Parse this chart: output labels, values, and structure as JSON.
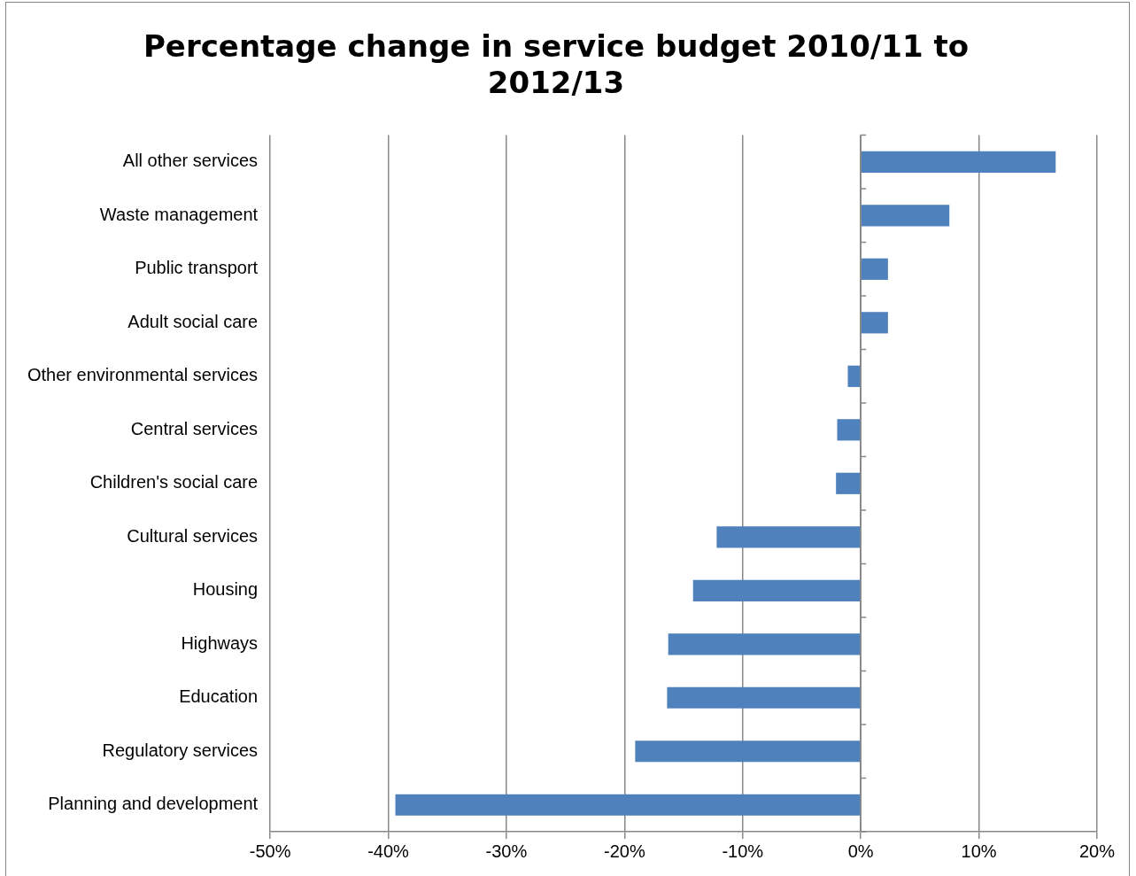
{
  "chart_data": {
    "type": "bar",
    "orientation": "horizontal",
    "title": "Percentage change in service budget 2010/11 to 2012/13",
    "categories": [
      "All other services",
      "Waste management",
      "Public transport",
      "Adult social care",
      "Other environmental services",
      "Central services",
      "Children's social care",
      "Cultural services",
      "Housing",
      "Highways",
      "Education",
      "Regulatory services",
      "Planning and development"
    ],
    "values": [
      16.5,
      7.5,
      2.3,
      2.3,
      -1.1,
      -2.0,
      -2.1,
      -12.2,
      -14.2,
      -16.3,
      -16.4,
      -19.1,
      -39.4
    ],
    "color": "#4f81bd",
    "xlim": [
      -50,
      20
    ],
    "xticks": [
      {
        "value": -50,
        "label": "-50%"
      },
      {
        "value": -40,
        "label": "-40%"
      },
      {
        "value": -30,
        "label": "-30%"
      },
      {
        "value": -20,
        "label": "-20%"
      },
      {
        "value": -10,
        "label": "-10%"
      },
      {
        "value": 0,
        "label": "0%"
      },
      {
        "value": 10,
        "label": "10%"
      },
      {
        "value": 20,
        "label": "20%"
      }
    ],
    "grid": "x",
    "legend": false
  }
}
